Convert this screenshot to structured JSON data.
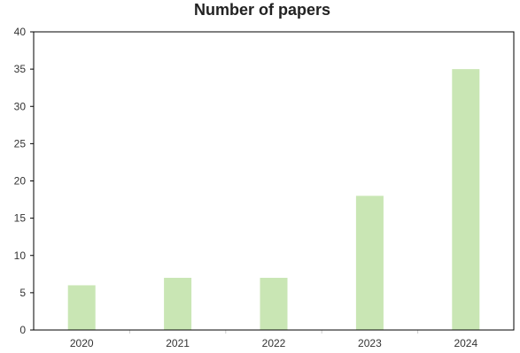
{
  "chart_data": {
    "type": "bar",
    "title": "Number of papers",
    "xlabel": "",
    "ylabel": "",
    "categories": [
      "2020",
      "2021",
      "2022",
      "2023",
      "2024"
    ],
    "values": [
      6,
      7,
      7,
      18,
      35
    ],
    "ylim": [
      0,
      40
    ],
    "yticks": [
      0,
      5,
      10,
      15,
      20,
      25,
      30,
      35,
      40
    ],
    "grid": false,
    "legend": "none",
    "bar_color": "#c9e6b4"
  }
}
